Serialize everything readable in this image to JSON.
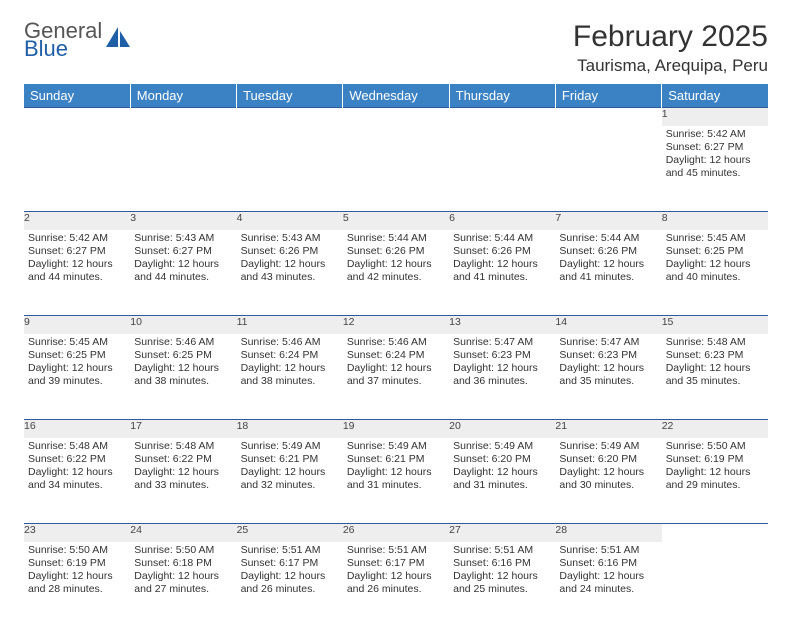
{
  "logo": {
    "line1": "General",
    "line2": "Blue"
  },
  "title": "February 2025",
  "location": "Taurisma, Arequipa, Peru",
  "colors": {
    "header_bg": "#3b82c4",
    "header_text": "#ffffff",
    "daynum_bg": "#eeeeee",
    "row_divider": "#2d5a99",
    "body_text": "#333333",
    "logo_gray": "#6b6b6b",
    "logo_blue": "#1f5fa8"
  },
  "day_names": [
    "Sunday",
    "Monday",
    "Tuesday",
    "Wednesday",
    "Thursday",
    "Friday",
    "Saturday"
  ],
  "weeks": [
    [
      null,
      null,
      null,
      null,
      null,
      null,
      {
        "d": "1",
        "sr": "5:42 AM",
        "ss": "6:27 PM",
        "dl": "12 hours and 45 minutes."
      }
    ],
    [
      {
        "d": "2",
        "sr": "5:42 AM",
        "ss": "6:27 PM",
        "dl": "12 hours and 44 minutes."
      },
      {
        "d": "3",
        "sr": "5:43 AM",
        "ss": "6:27 PM",
        "dl": "12 hours and 44 minutes."
      },
      {
        "d": "4",
        "sr": "5:43 AM",
        "ss": "6:26 PM",
        "dl": "12 hours and 43 minutes."
      },
      {
        "d": "5",
        "sr": "5:44 AM",
        "ss": "6:26 PM",
        "dl": "12 hours and 42 minutes."
      },
      {
        "d": "6",
        "sr": "5:44 AM",
        "ss": "6:26 PM",
        "dl": "12 hours and 41 minutes."
      },
      {
        "d": "7",
        "sr": "5:44 AM",
        "ss": "6:26 PM",
        "dl": "12 hours and 41 minutes."
      },
      {
        "d": "8",
        "sr": "5:45 AM",
        "ss": "6:25 PM",
        "dl": "12 hours and 40 minutes."
      }
    ],
    [
      {
        "d": "9",
        "sr": "5:45 AM",
        "ss": "6:25 PM",
        "dl": "12 hours and 39 minutes."
      },
      {
        "d": "10",
        "sr": "5:46 AM",
        "ss": "6:25 PM",
        "dl": "12 hours and 38 minutes."
      },
      {
        "d": "11",
        "sr": "5:46 AM",
        "ss": "6:24 PM",
        "dl": "12 hours and 38 minutes."
      },
      {
        "d": "12",
        "sr": "5:46 AM",
        "ss": "6:24 PM",
        "dl": "12 hours and 37 minutes."
      },
      {
        "d": "13",
        "sr": "5:47 AM",
        "ss": "6:23 PM",
        "dl": "12 hours and 36 minutes."
      },
      {
        "d": "14",
        "sr": "5:47 AM",
        "ss": "6:23 PM",
        "dl": "12 hours and 35 minutes."
      },
      {
        "d": "15",
        "sr": "5:48 AM",
        "ss": "6:23 PM",
        "dl": "12 hours and 35 minutes."
      }
    ],
    [
      {
        "d": "16",
        "sr": "5:48 AM",
        "ss": "6:22 PM",
        "dl": "12 hours and 34 minutes."
      },
      {
        "d": "17",
        "sr": "5:48 AM",
        "ss": "6:22 PM",
        "dl": "12 hours and 33 minutes."
      },
      {
        "d": "18",
        "sr": "5:49 AM",
        "ss": "6:21 PM",
        "dl": "12 hours and 32 minutes."
      },
      {
        "d": "19",
        "sr": "5:49 AM",
        "ss": "6:21 PM",
        "dl": "12 hours and 31 minutes."
      },
      {
        "d": "20",
        "sr": "5:49 AM",
        "ss": "6:20 PM",
        "dl": "12 hours and 31 minutes."
      },
      {
        "d": "21",
        "sr": "5:49 AM",
        "ss": "6:20 PM",
        "dl": "12 hours and 30 minutes."
      },
      {
        "d": "22",
        "sr": "5:50 AM",
        "ss": "6:19 PM",
        "dl": "12 hours and 29 minutes."
      }
    ],
    [
      {
        "d": "23",
        "sr": "5:50 AM",
        "ss": "6:19 PM",
        "dl": "12 hours and 28 minutes."
      },
      {
        "d": "24",
        "sr": "5:50 AM",
        "ss": "6:18 PM",
        "dl": "12 hours and 27 minutes."
      },
      {
        "d": "25",
        "sr": "5:51 AM",
        "ss": "6:17 PM",
        "dl": "12 hours and 26 minutes."
      },
      {
        "d": "26",
        "sr": "5:51 AM",
        "ss": "6:17 PM",
        "dl": "12 hours and 26 minutes."
      },
      {
        "d": "27",
        "sr": "5:51 AM",
        "ss": "6:16 PM",
        "dl": "12 hours and 25 minutes."
      },
      {
        "d": "28",
        "sr": "5:51 AM",
        "ss": "6:16 PM",
        "dl": "12 hours and 24 minutes."
      },
      null
    ]
  ],
  "labels": {
    "sunrise": "Sunrise:",
    "sunset": "Sunset:",
    "daylight": "Daylight:"
  }
}
